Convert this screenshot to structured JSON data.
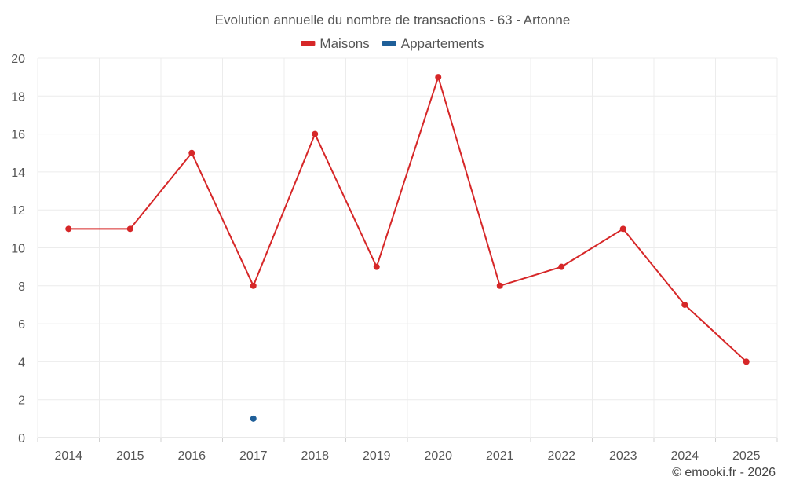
{
  "chart_data": {
    "type": "line",
    "title": "Evolution annuelle du nombre de transactions - 63 - Artonne",
    "categories": [
      "2014",
      "2015",
      "2016",
      "2017",
      "2018",
      "2019",
      "2020",
      "2021",
      "2022",
      "2023",
      "2024",
      "2025"
    ],
    "series": [
      {
        "name": "Maisons",
        "color": "#d62728",
        "values": [
          11,
          11,
          15,
          8,
          16,
          9,
          19,
          8,
          9,
          11,
          7,
          4
        ]
      },
      {
        "name": "Appartements",
        "color": "#1f5f99",
        "values": [
          null,
          null,
          null,
          1,
          null,
          null,
          null,
          null,
          null,
          null,
          null,
          null
        ]
      }
    ],
    "ylim": [
      0,
      20
    ],
    "yticks": [
      0,
      2,
      4,
      6,
      8,
      10,
      12,
      14,
      16,
      18,
      20
    ],
    "grid": true,
    "legend_position": "top-center"
  },
  "footer": "© emooki.fr - 2026"
}
